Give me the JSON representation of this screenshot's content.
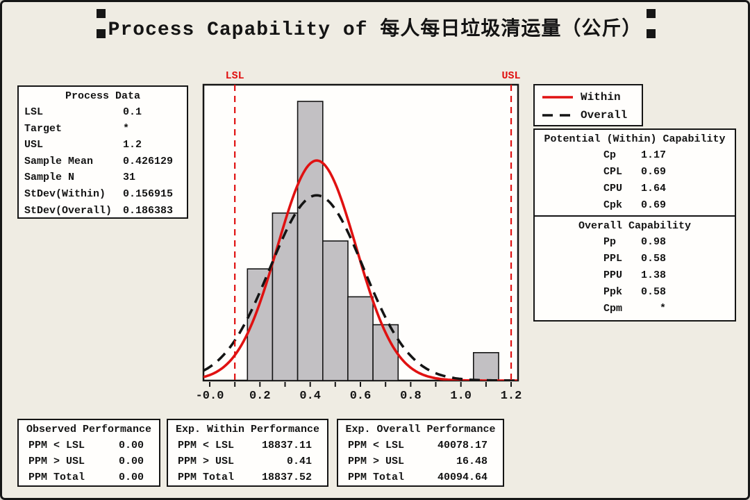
{
  "title": "Process Capability of 每人每日垃圾清运量（公斤）",
  "colors": {
    "background": "#efece3",
    "box_background": "#fffefc",
    "border_black": "#141414",
    "bar_fill": "#c2c0c3",
    "within_red": "#e01111",
    "spec_limit_red": "#e01111",
    "overall_black": "#141414"
  },
  "process_data": {
    "title": "Process Data",
    "rows": [
      {
        "label": "LSL",
        "value": "0.1"
      },
      {
        "label": "Target",
        "value": "*"
      },
      {
        "label": "USL",
        "value": "1.2"
      },
      {
        "label": "Sample Mean",
        "value": "0.426129"
      },
      {
        "label": "Sample N",
        "value": "31"
      },
      {
        "label": "StDev(Within)",
        "value": "0.156915"
      },
      {
        "label": "StDev(Overall)",
        "value": "0.186383"
      }
    ]
  },
  "legend": {
    "items": [
      {
        "label": "Within",
        "style": "solid",
        "color": "#e01111"
      },
      {
        "label": "Overall",
        "style": "dashed",
        "color": "#141414"
      }
    ]
  },
  "capability_within": {
    "title": "Potential (Within) Capability",
    "rows": [
      {
        "label": "Cp",
        "value": "1.17"
      },
      {
        "label": "CPL",
        "value": "0.69"
      },
      {
        "label": "CPU",
        "value": "1.64"
      },
      {
        "label": "Cpk",
        "value": "0.69"
      }
    ]
  },
  "capability_overall": {
    "title": "Overall Capability",
    "rows": [
      {
        "label": "Pp",
        "value": "0.98"
      },
      {
        "label": "PPL",
        "value": "0.58"
      },
      {
        "label": "PPU",
        "value": "1.38"
      },
      {
        "label": "Ppk",
        "value": "0.58"
      },
      {
        "label": "Cpm",
        "value": "*"
      }
    ]
  },
  "performance": {
    "observed": {
      "title": "Observed Performance",
      "rows": [
        {
          "label": "PPM < LSL",
          "value": "0.00"
        },
        {
          "label": "PPM > USL",
          "value": "0.00"
        },
        {
          "label": "PPM Total",
          "value": "0.00"
        }
      ]
    },
    "exp_within": {
      "title": "Exp. Within Performance",
      "rows": [
        {
          "label": "PPM < LSL",
          "value": "18837.11"
        },
        {
          "label": "PPM > USL",
          "value": "0.41"
        },
        {
          "label": "PPM Total",
          "value": "18837.52"
        }
      ]
    },
    "exp_overall": {
      "title": "Exp. Overall Performance",
      "rows": [
        {
          "label": "PPM < LSL",
          "value": "40078.17"
        },
        {
          "label": "PPM > USL",
          "value": "16.48"
        },
        {
          "label": "PPM Total",
          "value": "40094.64"
        }
      ]
    }
  },
  "spec_limits": {
    "lsl_label": "LSL",
    "usl_label": "USL"
  },
  "chart_data": {
    "type": "bar",
    "subtype": "capability_histogram",
    "title": "Process Capability of 每人每日垃圾清运量（公斤）",
    "bin_width": 0.1,
    "bin_centers": [
      0.2,
      0.3,
      0.4,
      0.5,
      0.6,
      0.7,
      1.1
    ],
    "counts": [
      4,
      6,
      10,
      5,
      3,
      2,
      1
    ],
    "sample_n": 31,
    "lsl": 0.1,
    "usl": 1.2,
    "curves": [
      {
        "name": "Within",
        "mean": 0.426129,
        "stdev": 0.156915,
        "style": "solid",
        "color": "#e01111"
      },
      {
        "name": "Overall",
        "mean": 0.426129,
        "stdev": 0.186383,
        "style": "dashed",
        "color": "#141414"
      }
    ],
    "x_tick_values": [
      0,
      0.2,
      0.4,
      0.6,
      0.8,
      1.0,
      1.2
    ],
    "x_tick_labels": [
      "-0.0",
      "0.2",
      "0.4",
      "0.6",
      "0.8",
      "1.0",
      "1.2"
    ],
    "x_minor_step": 0.1,
    "x_tick_range": [
      0,
      1.2
    ],
    "xlim": [
      -0.025,
      1.228
    ],
    "ylim_counts": [
      0,
      10.6
    ],
    "grid": false,
    "legend_position": "top-right"
  }
}
